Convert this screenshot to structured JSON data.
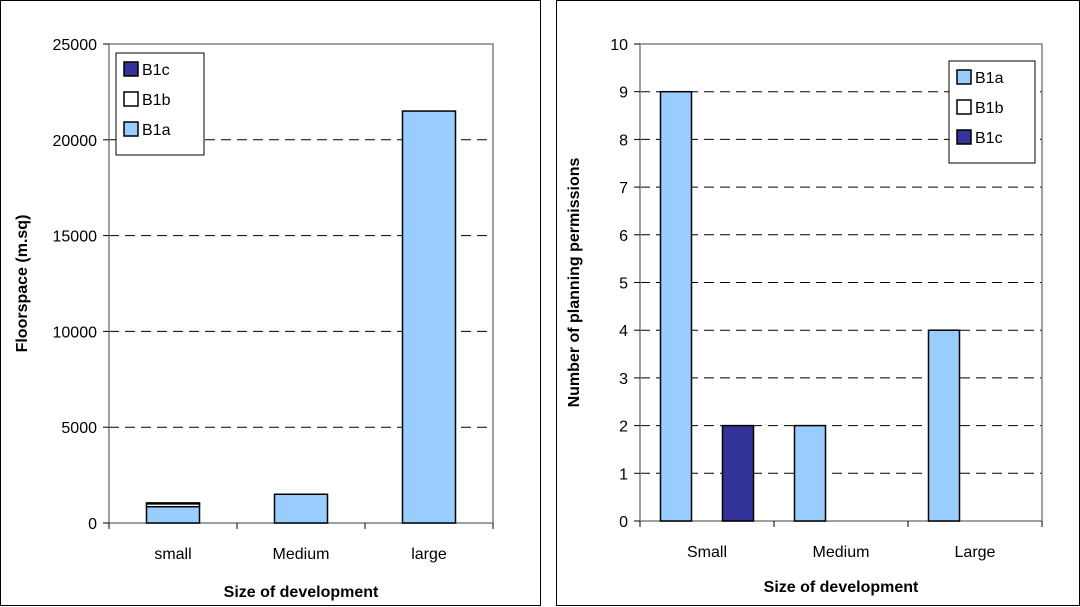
{
  "colors": {
    "B1a": "#99ccff",
    "B1b": "#ffffff",
    "B1c": "#333399"
  },
  "chart_data": [
    {
      "type": "bar",
      "stacked": true,
      "categories": [
        "small",
        "Medium",
        "large"
      ],
      "series": [
        {
          "name": "B1a",
          "values": [
            850,
            1500,
            21500
          ]
        },
        {
          "name": "B1b",
          "values": [
            150,
            0,
            0
          ]
        },
        {
          "name": "B1c",
          "values": [
            50,
            0,
            0
          ]
        }
      ],
      "legend": [
        "B1c",
        "B1b",
        "B1a"
      ],
      "legend_position": "top-left",
      "xlabel": "Size of development",
      "ylabel": "Floorspace (m.sq)",
      "ylim": [
        0,
        25000
      ],
      "yticks": [
        0,
        5000,
        10000,
        15000,
        20000,
        25000
      ],
      "grid": "dashed-horizontal"
    },
    {
      "type": "bar",
      "stacked": false,
      "categories": [
        "Small",
        "Medium",
        "Large"
      ],
      "series": [
        {
          "name": "B1a",
          "values": [
            9,
            2,
            4
          ]
        },
        {
          "name": "B1b",
          "values": [
            0,
            0,
            0
          ]
        },
        {
          "name": "B1c",
          "values": [
            2,
            0,
            0
          ]
        }
      ],
      "legend": [
        "B1a",
        "B1b",
        "B1c"
      ],
      "legend_position": "top-right",
      "xlabel": "Size of development",
      "ylabel": "Number of planning permissions",
      "ylim": [
        0,
        10
      ],
      "yticks": [
        0,
        1,
        2,
        3,
        4,
        5,
        6,
        7,
        8,
        9,
        10
      ],
      "grid": "dashed-horizontal"
    }
  ]
}
